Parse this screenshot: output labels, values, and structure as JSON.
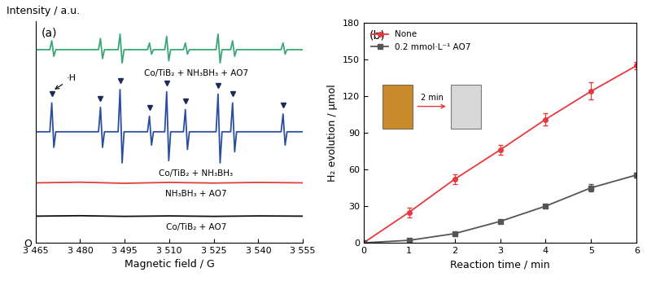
{
  "chart_data": [
    {
      "type": "line",
      "title": "(a)",
      "x_label": "Magnetic field / G",
      "y_label": "Intensity / a.u.",
      "xlim": [
        3465,
        3555
      ],
      "xticks": [
        {
          "value": 3465,
          "label": "3 465"
        },
        {
          "value": 3480,
          "label": "3 480"
        },
        {
          "value": 3495,
          "label": "3 495"
        },
        {
          "value": 3510,
          "label": "3 510"
        },
        {
          "value": 3525,
          "label": "3 525"
        },
        {
          "value": 3540,
          "label": "3 540"
        },
        {
          "value": 3555,
          "label": "3 555"
        }
      ],
      "ylim": [
        0,
        100
      ],
      "yticks": [
        {
          "value": 0,
          "label": "O"
        }
      ],
      "series": [
        {
          "name": "Co/TiB₂ + NH₃BH₃ + AO7",
          "color": "#3aa876",
          "x": [
            3465,
            3469.8,
            3470.45,
            3471.15,
            3471.8,
            3486.2,
            3486.85,
            3487.55,
            3488.2,
            3492.8,
            3493.45,
            3494.15,
            3494.8,
            3502.7,
            3503.35,
            3504.05,
            3504.7,
            3508.5,
            3509.15,
            3509.85,
            3510.5,
            3514.8,
            3515.45,
            3516.15,
            3516.8,
            3525.8,
            3526.45,
            3527.15,
            3527.8,
            3530.7,
            3531.35,
            3532.05,
            3532.7,
            3547.7,
            3548.35,
            3549.05,
            3549.7,
            3555
          ],
          "values": [
            87,
            87,
            91,
            84,
            87,
            87,
            92,
            83,
            87,
            87,
            94,
            81,
            87,
            87,
            90,
            85,
            87,
            87,
            93,
            82,
            87,
            87,
            90,
            85,
            87,
            87,
            94,
            81,
            87,
            87,
            91,
            84,
            87,
            87,
            90,
            85,
            87,
            87
          ]
        },
        {
          "name": "Co/TiB₂ + NH₃BH₃",
          "color": "#2a4f9f",
          "x": [
            3465,
            3469.8,
            3470.45,
            3471.15,
            3471.8,
            3486.2,
            3486.85,
            3487.55,
            3488.2,
            3492.8,
            3493.45,
            3494.15,
            3494.8,
            3502.7,
            3503.35,
            3504.05,
            3504.7,
            3508.5,
            3509.15,
            3509.85,
            3510.5,
            3514.8,
            3515.45,
            3516.15,
            3516.8,
            3525.8,
            3526.45,
            3527.15,
            3527.8,
            3530.7,
            3531.35,
            3532.05,
            3532.7,
            3547.7,
            3548.35,
            3549.05,
            3549.7,
            3555
          ],
          "values": [
            50,
            50,
            63,
            43,
            50,
            50,
            61,
            43,
            50,
            50,
            69,
            36,
            50,
            50,
            57,
            44,
            50,
            50,
            68,
            37,
            50,
            50,
            60,
            42,
            50,
            50,
            67,
            36,
            50,
            50,
            63,
            41,
            50,
            50,
            58,
            44,
            50,
            50
          ],
          "peak_markers": [
            3470.45,
            3486.85,
            3493.45,
            3503.35,
            3509.15,
            3515.45,
            3526.45,
            3531.35,
            3548.35
          ],
          "annotation": "·H"
        },
        {
          "name": "NH₃BH₃ + AO7",
          "color": "#e0403a",
          "x": [
            3465,
            3480,
            3495,
            3510,
            3525,
            3540,
            3555
          ],
          "values": [
            27,
            27.3,
            26.8,
            27.2,
            26.9,
            27.2,
            27
          ]
        },
        {
          "name": "Co/TiB₂ + AO7",
          "color": "#111111",
          "x": [
            3465,
            3480,
            3495,
            3510,
            3525,
            3540,
            3555
          ],
          "values": [
            12,
            12.2,
            11.9,
            12.1,
            11.9,
            12.1,
            12
          ]
        }
      ]
    },
    {
      "type": "line",
      "title": "(b)",
      "x_label": "Reaction time / min",
      "y_label": "H₂ evolution / μmol",
      "x": [
        0,
        1,
        2,
        3,
        4,
        5,
        6
      ],
      "xlim": [
        0,
        6
      ],
      "xticks": [
        0,
        1,
        2,
        3,
        4,
        5,
        6
      ],
      "ylim": [
        0,
        180
      ],
      "yticks": [
        0,
        30,
        60,
        90,
        120,
        150,
        180
      ],
      "legend": "upper left",
      "inset_label": "2 min",
      "series": [
        {
          "name": "None",
          "color": "#e8383d",
          "marker": "o",
          "values": [
            0,
            25,
            52,
            76,
            101,
            124,
            145
          ],
          "errors": [
            0,
            4,
            4,
            4,
            5,
            7,
            3
          ]
        },
        {
          "name": "0.2 mmol·L⁻¹ AO7",
          "color": "#555555",
          "marker": "s",
          "values": [
            0,
            2,
            7.5,
            17.5,
            30,
            45,
            55.5
          ],
          "errors": [
            0,
            0.5,
            1,
            1,
            1,
            3,
            2
          ]
        }
      ]
    }
  ]
}
